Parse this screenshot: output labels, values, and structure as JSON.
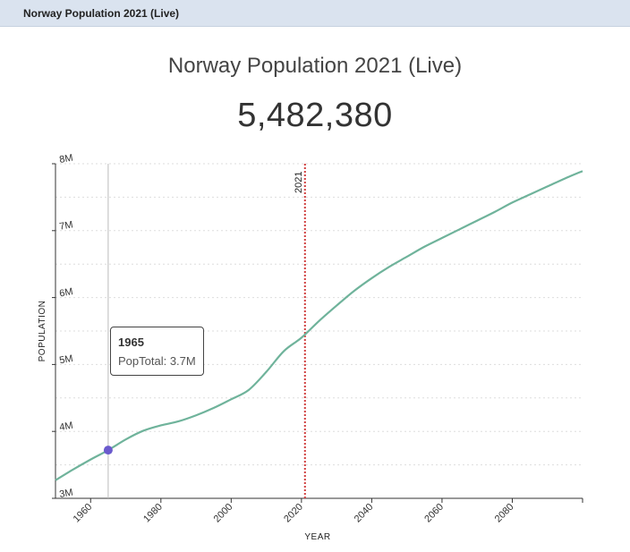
{
  "header": {
    "title": "Norway Population 2021 (Live)"
  },
  "chart_title": "Norway Population 2021 (Live)",
  "live_count": "5,482,380",
  "tooltip": {
    "year": "1965",
    "label": "PopTotal: 3.7M"
  },
  "colors": {
    "line": "#6fb39b",
    "marker": "#d04040",
    "point": "#6a5acd",
    "grid": "#dddddd"
  },
  "chart_data": {
    "type": "line",
    "title": "Norway Population 2021 (Live)",
    "xlabel": "YEAR",
    "ylabel": "POPULATION",
    "xlim": [
      1950,
      2100
    ],
    "ylim": [
      3000000,
      8000000
    ],
    "x_ticks": [
      1960,
      1980,
      2000,
      2020,
      2040,
      2060,
      2080
    ],
    "y_ticks": [
      3000000,
      4000000,
      5000000,
      6000000,
      7000000,
      8000000
    ],
    "y_tick_labels": [
      "3M",
      "4M",
      "5M",
      "6M",
      "7M",
      "8M"
    ],
    "grid": "horizontal dotted",
    "series": [
      {
        "x": [
          1950,
          1955,
          1960,
          1965,
          1970,
          1975,
          1980,
          1985,
          1990,
          1995,
          2000,
          2005,
          2010,
          2015,
          2020,
          2025,
          2030,
          2035,
          2040,
          2045,
          2050,
          2055,
          2060,
          2065,
          2070,
          2075,
          2080,
          2085,
          2090,
          2095,
          2100
        ],
        "y": [
          3270000,
          3430000,
          3580000,
          3720000,
          3880000,
          4010000,
          4090000,
          4150000,
          4240000,
          4350000,
          4480000,
          4620000,
          4890000,
          5200000,
          5400000,
          5650000,
          5880000,
          6100000,
          6290000,
          6460000,
          6610000,
          6760000,
          6890000,
          7020000,
          7150000,
          7280000,
          7420000,
          7540000,
          7660000,
          7780000,
          7890000
        ]
      }
    ],
    "vertical_marker": {
      "x": 2021,
      "label": "2021"
    },
    "highlight": {
      "x": 1965,
      "y": 3720000
    }
  }
}
